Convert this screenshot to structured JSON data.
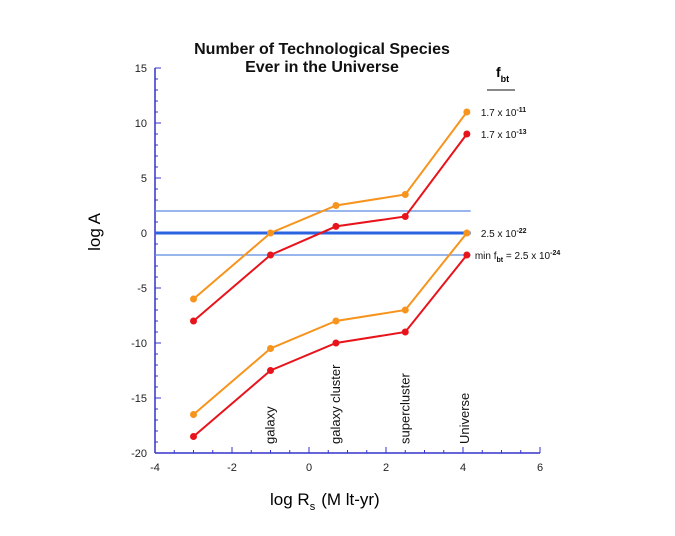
{
  "chart_data": {
    "type": "line",
    "title": [
      "Number of Technological Species",
      "Ever in the Universe"
    ],
    "xlabel": "log R",
    "xlabel_sub": "s",
    "xlabel_unit": "(M lt-yr)",
    "ylabel": "log A",
    "xlim": [
      -4,
      6
    ],
    "ylim": [
      -20,
      15
    ],
    "xticks": [
      "-4",
      "-2",
      "0",
      "2",
      "4",
      "6"
    ],
    "yticks": [
      "15",
      "10",
      "5",
      "0",
      "-5",
      "-10",
      "-15",
      "-20"
    ],
    "grid": false,
    "axis_color": "#3333cc",
    "x": [
      -3,
      -1,
      0.7,
      2.5,
      4.1
    ],
    "series": [
      {
        "values": [
          -6,
          0,
          2.5,
          3.5,
          11
        ],
        "color": "#f7941d",
        "label": "1.7 x 10",
        "exp": "-11"
      },
      {
        "values": [
          -8,
          -2,
          0.6,
          1.5,
          9
        ],
        "color": "#e8141c",
        "label": "1.7 x 10",
        "exp": "-13"
      },
      {
        "values": [
          -16.5,
          -10.5,
          -8,
          -7,
          0
        ],
        "color": "#f7941d",
        "label": "2.5 x 10",
        "exp": "-22"
      },
      {
        "values": [
          -18.5,
          -12.5,
          -10,
          -9,
          -2
        ],
        "color": "#e8141c",
        "label_prefix": "min f",
        "label_prefix_sub": "bt",
        "label": " = 2.5 x 10",
        "exp": "-24"
      }
    ],
    "hlines": [
      {
        "y": 0,
        "color": "#2b63e0",
        "weight": "thick"
      },
      {
        "y": 2,
        "color": "#5b8be0",
        "weight": "thin"
      },
      {
        "y": -2,
        "color": "#5b8be0",
        "weight": "thin"
      }
    ],
    "legend_header": "f",
    "legend_header_sub": "bt",
    "vertical_labels": [
      {
        "x": -1,
        "text": "galaxy"
      },
      {
        "x": 0.7,
        "text": "galaxy cluster"
      },
      {
        "x": 2.5,
        "text": "supercluster"
      },
      {
        "x": 4.05,
        "text": "Universe"
      }
    ]
  }
}
